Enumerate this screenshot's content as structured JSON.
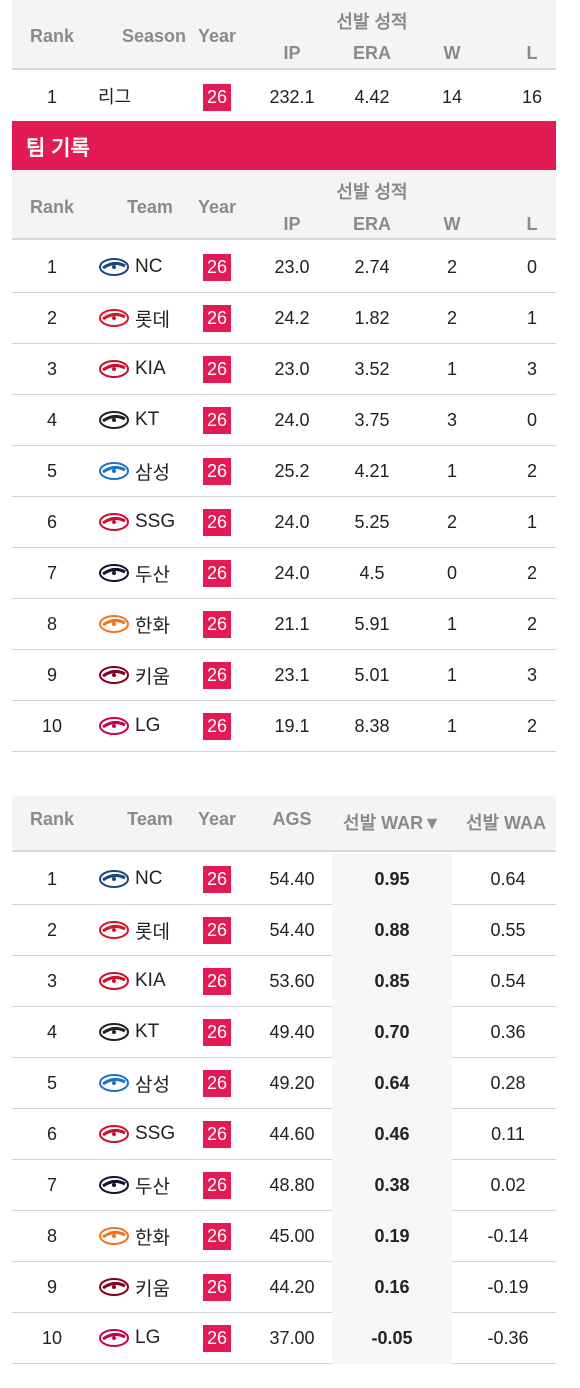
{
  "league_table": {
    "headers": {
      "rank": "Rank",
      "season": "Season",
      "year": "Year",
      "group": "선발 성적",
      "ip": "IP",
      "era": "ERA",
      "w": "W",
      "l": "L"
    },
    "row": {
      "rank": "1",
      "season": "리그",
      "year": "26",
      "ip": "232.1",
      "era": "4.42",
      "w": "14",
      "l": "16"
    }
  },
  "team_banner": {
    "title": "팀 기록"
  },
  "team_table": {
    "headers": {
      "rank": "Rank",
      "team": "Team",
      "year": "Year",
      "group": "선발 성적",
      "ip": "IP",
      "era": "ERA",
      "w": "W",
      "l": "L"
    },
    "rows": [
      {
        "rank": "1",
        "team": "NC",
        "logo": "dinos-logo",
        "color": "#1d467e",
        "year": "26",
        "ip": "23.0",
        "era": "2.74",
        "w": "2",
        "l": "0"
      },
      {
        "rank": "2",
        "team": "롯데",
        "logo": "giants-logo",
        "color": "#d7182a",
        "year": "26",
        "ip": "24.2",
        "era": "1.82",
        "w": "2",
        "l": "1"
      },
      {
        "rank": "3",
        "team": "KIA",
        "logo": "tigers-logo",
        "color": "#c8102e",
        "year": "26",
        "ip": "23.0",
        "era": "3.52",
        "w": "1",
        "l": "3"
      },
      {
        "rank": "4",
        "team": "KT",
        "logo": "ktwiz-logo",
        "color": "#222222",
        "year": "26",
        "ip": "24.0",
        "era": "3.75",
        "w": "3",
        "l": "0"
      },
      {
        "rank": "5",
        "team": "삼성",
        "logo": "lions-logo",
        "color": "#1a73c9",
        "year": "26",
        "ip": "25.2",
        "era": "4.21",
        "w": "1",
        "l": "2"
      },
      {
        "rank": "6",
        "team": "SSG",
        "logo": "landers-logo",
        "color": "#ce0e2d",
        "year": "26",
        "ip": "24.0",
        "era": "5.25",
        "w": "2",
        "l": "1"
      },
      {
        "rank": "7",
        "team": "두산",
        "logo": "bears-logo",
        "color": "#131230",
        "year": "26",
        "ip": "24.0",
        "era": "4.5",
        "w": "0",
        "l": "2"
      },
      {
        "rank": "8",
        "team": "한화",
        "logo": "eagles-logo",
        "color": "#f37321",
        "year": "26",
        "ip": "21.1",
        "era": "5.91",
        "w": "1",
        "l": "2"
      },
      {
        "rank": "9",
        "team": "키움",
        "logo": "heroes-logo",
        "color": "#820024",
        "year": "26",
        "ip": "23.1",
        "era": "5.01",
        "w": "1",
        "l": "3"
      },
      {
        "rank": "10",
        "team": "LG",
        "logo": "twins-logo",
        "color": "#c30452",
        "year": "26",
        "ip": "19.1",
        "era": "8.38",
        "w": "1",
        "l": "2"
      }
    ]
  },
  "war_table": {
    "headers": {
      "rank": "Rank",
      "team": "Team",
      "year": "Year",
      "ags": "AGS",
      "war": "선발 WAR▼",
      "waa": "선발 WAA"
    },
    "rows": [
      {
        "rank": "1",
        "team": "NC",
        "logo": "dinos-logo",
        "color": "#1d467e",
        "year": "26",
        "ags": "54.40",
        "war": "0.95",
        "waa": "0.64"
      },
      {
        "rank": "2",
        "team": "롯데",
        "logo": "giants-logo",
        "color": "#d7182a",
        "year": "26",
        "ags": "54.40",
        "war": "0.88",
        "waa": "0.55"
      },
      {
        "rank": "3",
        "team": "KIA",
        "logo": "tigers-logo",
        "color": "#c8102e",
        "year": "26",
        "ags": "53.60",
        "war": "0.85",
        "waa": "0.54"
      },
      {
        "rank": "4",
        "team": "KT",
        "logo": "ktwiz-logo",
        "color": "#222222",
        "year": "26",
        "ags": "49.40",
        "war": "0.70",
        "waa": "0.36"
      },
      {
        "rank": "5",
        "team": "삼성",
        "logo": "lions-logo",
        "color": "#1a73c9",
        "year": "26",
        "ags": "49.20",
        "war": "0.64",
        "waa": "0.28"
      },
      {
        "rank": "6",
        "team": "SSG",
        "logo": "landers-logo",
        "color": "#ce0e2d",
        "year": "26",
        "ags": "44.60",
        "war": "0.46",
        "waa": "0.11"
      },
      {
        "rank": "7",
        "team": "두산",
        "logo": "bears-logo",
        "color": "#131230",
        "year": "26",
        "ags": "48.80",
        "war": "0.38",
        "waa": "0.02"
      },
      {
        "rank": "8",
        "team": "한화",
        "logo": "eagles-logo",
        "color": "#f37321",
        "year": "26",
        "ags": "45.00",
        "war": "0.19",
        "waa": "-0.14"
      },
      {
        "rank": "9",
        "team": "키움",
        "logo": "heroes-logo",
        "color": "#820024",
        "year": "26",
        "ags": "44.20",
        "war": "0.16",
        "waa": "-0.19"
      },
      {
        "rank": "10",
        "team": "LG",
        "logo": "twins-logo",
        "color": "#c30452",
        "year": "26",
        "ags": "37.00",
        "war": "-0.05",
        "waa": "-0.36"
      }
    ]
  },
  "colors": {
    "accent": "#e31b54",
    "header_bg": "#f4f4f4",
    "header_text": "#8a8a8a"
  }
}
